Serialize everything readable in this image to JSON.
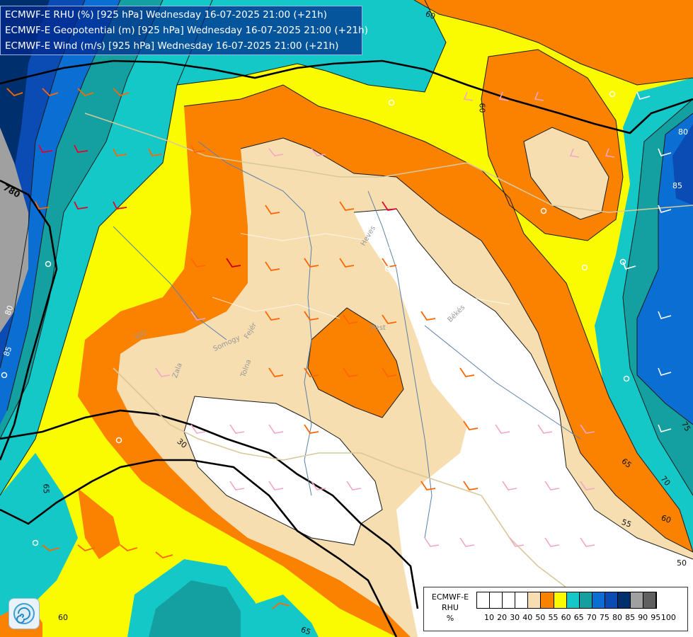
{
  "title": {
    "line1": "ECMWF-E RHU (%) [925 hPa] Wednesday 16-07-2025 21:00 (+21h)",
    "line2": "ECMWF-E Geopotential (m) [925 hPa] Wednesday 16-07-2025 21:00 (+21h)",
    "line3": "ECMWF-E Wind (m/s) [925 hPa] Wednesday 16-07-2025 21:00 (+21h)"
  },
  "contour_labels": [
    "60",
    "60",
    "80",
    "85",
    "75",
    "70",
    "65",
    "60",
    "55",
    "50",
    "30",
    "65",
    "60",
    "65",
    "780",
    "80",
    "85"
  ],
  "region_labels": [
    "Zala",
    "Vas",
    "Somogy",
    "Tolna",
    "Fejér",
    "Pest",
    "Heves",
    "Békés"
  ],
  "legend": {
    "caption_line1": "ECMWF-E",
    "caption_line2": "RHU",
    "caption_line3": "%",
    "colors": [
      "#ffffff",
      "#ffffff",
      "#ffffff",
      "#ffffff",
      "#f6deb0",
      "#fb8200",
      "#fbfb00",
      "#14c8c8",
      "#14a0a0",
      "#0a6ed2",
      "#0a4bb4",
      "#002f6e",
      "#a0a0a0",
      "#606060"
    ],
    "ticks": [
      "10",
      "20",
      "30",
      "40",
      "50",
      "55",
      "60",
      "65",
      "70",
      "75",
      "80",
      "85",
      "90",
      "95",
      "100"
    ]
  },
  "logo": {
    "icon": "spiral-logo-icon"
  }
}
